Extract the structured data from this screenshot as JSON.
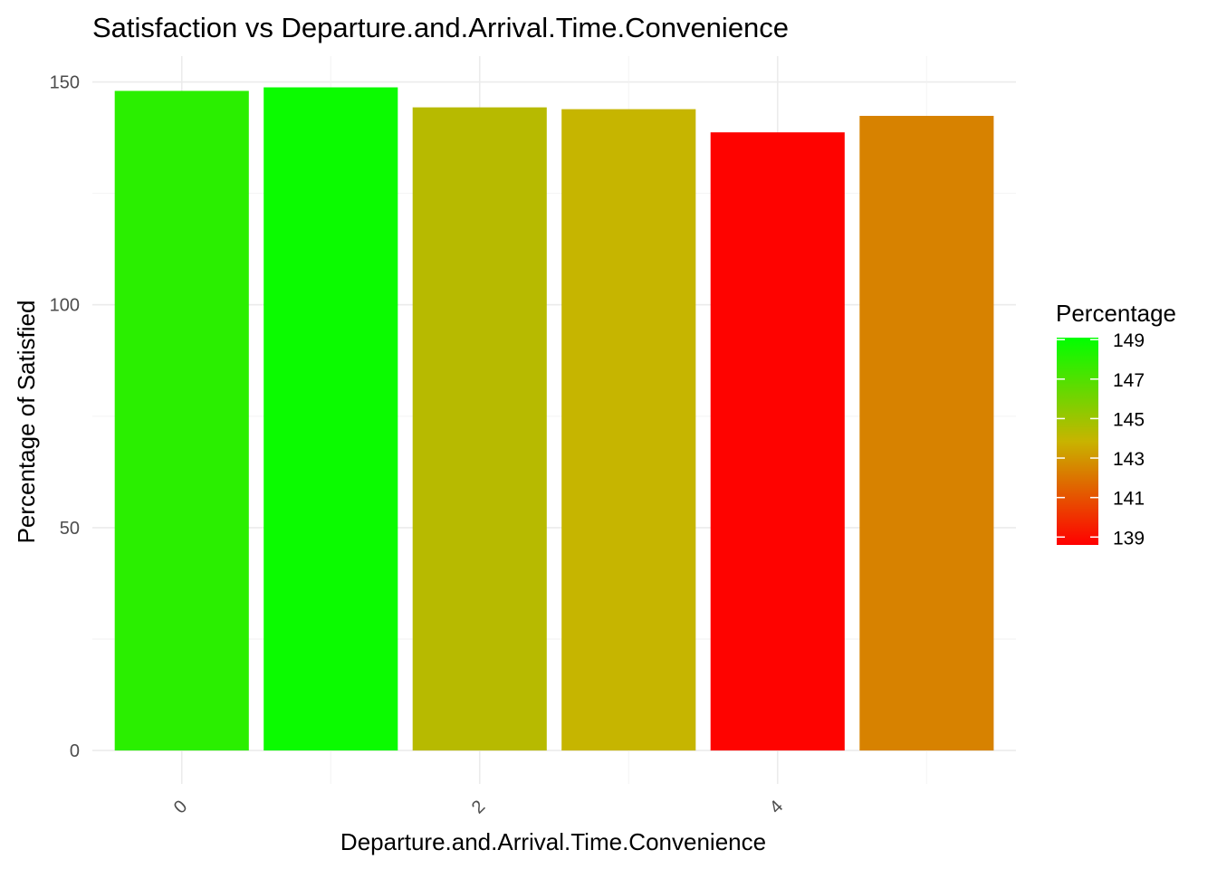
{
  "chart_data": {
    "type": "bar",
    "title": "Satisfaction vs Departure.and.Arrival.Time.Convenience",
    "xlabel": "Departure.and.Arrival.Time.Convenience",
    "ylabel": "Percentage of Satisfied",
    "categories": [
      0,
      1,
      2,
      3,
      4,
      5
    ],
    "values": [
      148.0,
      148.8,
      144.3,
      143.9,
      138.7,
      142.4
    ],
    "xlim": [
      -0.6,
      5.6
    ],
    "ylim": [
      -7.5,
      155.8
    ],
    "x_ticks": [
      0,
      2,
      4
    ],
    "x_tick_labels": [
      "0",
      "2",
      "4"
    ],
    "x_tick_label_rotation_deg": 45,
    "y_ticks": [
      0,
      50,
      100,
      150
    ],
    "y_tick_labels": [
      "0",
      "50",
      "100",
      "150"
    ],
    "grid": true,
    "legend": {
      "title": "Percentage",
      "type": "continuous-colorbar",
      "placement": "right",
      "range": [
        138.6,
        149.1
      ],
      "breaks": [
        149,
        147,
        145,
        143,
        141,
        139
      ],
      "break_labels": [
        "149",
        "147",
        "145",
        "143",
        "141",
        "139"
      ],
      "gradient_low": "#ff0000",
      "gradient_high": "#00ff00"
    }
  }
}
